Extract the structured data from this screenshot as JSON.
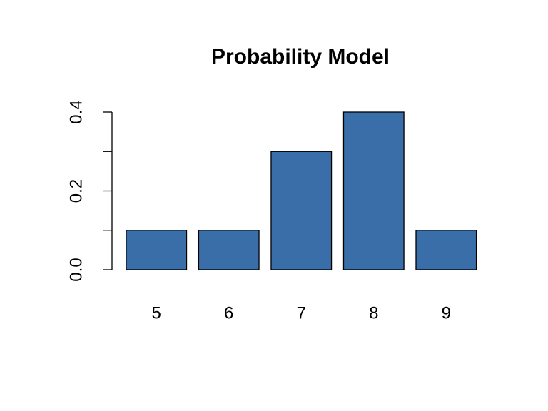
{
  "chart_data": {
    "type": "bar",
    "title": "Probability Model",
    "categories": [
      "5",
      "6",
      "7",
      "8",
      "9"
    ],
    "values": [
      0.1,
      0.1,
      0.3,
      0.4,
      0.1
    ],
    "color": "#3a6ea8",
    "ylim": [
      0,
      0.4
    ],
    "yticks": [
      {
        "value": 0,
        "label": "0.0"
      },
      0.2,
      0.4
    ],
    "minor_yticks": [
      0.1,
      0.3
    ]
  }
}
